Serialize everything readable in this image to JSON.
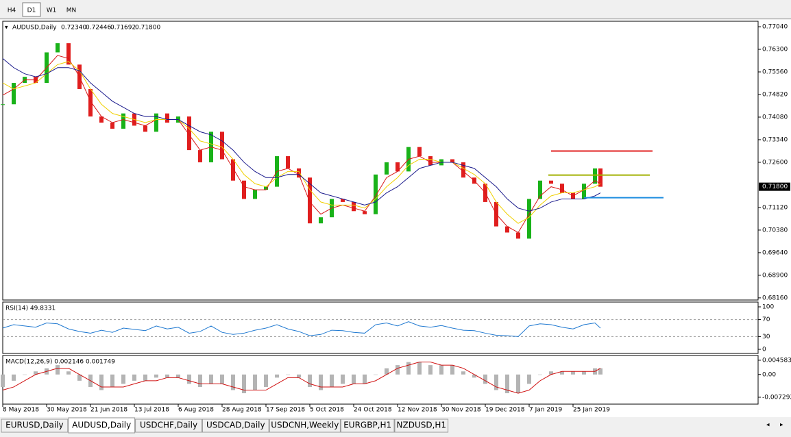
{
  "toolbar": {
    "buttons": [
      "H4",
      "D1",
      "W1",
      "MN"
    ],
    "active": 1
  },
  "chart_data": [
    {
      "type": "candlestick",
      "title": "AUDUSD,Daily",
      "ohlc": [
        "0.72340",
        "0.72446",
        "0.71692",
        "0.71800"
      ],
      "x": [
        0,
        4,
        8,
        12,
        16,
        20,
        24,
        28,
        32,
        36,
        40,
        44,
        48,
        52,
        56,
        60,
        64,
        68,
        72,
        76,
        80,
        84,
        88,
        92,
        96,
        100,
        104,
        108,
        112,
        116,
        120,
        124,
        128,
        132,
        136,
        140,
        144,
        148,
        152,
        156,
        160,
        164,
        168,
        172,
        176,
        180,
        184,
        188,
        192,
        196,
        200,
        204,
        208,
        212,
        216,
        218
      ],
      "values": [
        0.745,
        0.752,
        0.754,
        0.752,
        0.762,
        0.765,
        0.758,
        0.75,
        0.741,
        0.739,
        0.737,
        0.742,
        0.738,
        0.736,
        0.742,
        0.739,
        0.741,
        0.73,
        0.726,
        0.736,
        0.727,
        0.72,
        0.714,
        0.717,
        0.718,
        0.728,
        0.724,
        0.721,
        0.706,
        0.708,
        0.714,
        0.713,
        0.71,
        0.709,
        0.722,
        0.726,
        0.723,
        0.731,
        0.728,
        0.725,
        0.727,
        0.726,
        0.721,
        0.719,
        0.713,
        0.705,
        0.703,
        0.701,
        0.714,
        0.72,
        0.719,
        0.716,
        0.714,
        0.719,
        0.724,
        0.718
      ],
      "colors": {
        "up": "#19b219",
        "down": "#e01e1e"
      },
      "series": [
        {
          "color": "#d81818",
          "values": [
            0.748,
            0.75,
            0.753,
            0.753,
            0.757,
            0.761,
            0.76,
            0.754,
            0.746,
            0.741,
            0.739,
            0.74,
            0.739,
            0.738,
            0.74,
            0.74,
            0.74,
            0.735,
            0.73,
            0.731,
            0.73,
            0.724,
            0.718,
            0.717,
            0.717,
            0.723,
            0.724,
            0.722,
            0.713,
            0.709,
            0.711,
            0.712,
            0.711,
            0.71,
            0.715,
            0.721,
            0.723,
            0.727,
            0.728,
            0.726,
            0.726,
            0.726,
            0.723,
            0.72,
            0.716,
            0.709,
            0.705,
            0.703,
            0.709,
            0.715,
            0.718,
            0.717,
            0.715,
            0.717,
            0.72,
            0.719
          ]
        },
        {
          "color": "#f0d000",
          "values": [
            0.752,
            0.75,
            0.751,
            0.752,
            0.755,
            0.758,
            0.759,
            0.756,
            0.75,
            0.745,
            0.742,
            0.741,
            0.74,
            0.739,
            0.74,
            0.74,
            0.74,
            0.737,
            0.733,
            0.732,
            0.731,
            0.727,
            0.722,
            0.719,
            0.718,
            0.721,
            0.723,
            0.723,
            0.717,
            0.713,
            0.712,
            0.712,
            0.712,
            0.711,
            0.714,
            0.718,
            0.721,
            0.725,
            0.727,
            0.727,
            0.726,
            0.726,
            0.724,
            0.722,
            0.719,
            0.713,
            0.709,
            0.706,
            0.708,
            0.712,
            0.715,
            0.716,
            0.716,
            0.717,
            0.718,
            0.719
          ]
        },
        {
          "color": "#1a1a8c",
          "values": [
            0.76,
            0.757,
            0.755,
            0.754,
            0.755,
            0.757,
            0.757,
            0.756,
            0.752,
            0.749,
            0.746,
            0.744,
            0.742,
            0.741,
            0.741,
            0.74,
            0.74,
            0.738,
            0.736,
            0.735,
            0.733,
            0.73,
            0.726,
            0.723,
            0.721,
            0.721,
            0.722,
            0.722,
            0.719,
            0.716,
            0.715,
            0.714,
            0.713,
            0.712,
            0.713,
            0.716,
            0.718,
            0.721,
            0.724,
            0.725,
            0.726,
            0.726,
            0.725,
            0.724,
            0.721,
            0.718,
            0.714,
            0.711,
            0.71,
            0.711,
            0.713,
            0.714,
            0.714,
            0.714,
            0.715,
            0.716
          ]
        }
      ],
      "levels": [
        {
          "color": "#e02020",
          "value": 0.7297,
          "x": [
            200,
            237
          ]
        },
        {
          "color": "#a0b000",
          "value": 0.7218,
          "x": [
            199,
            236
          ]
        },
        {
          "color": "#1e8ee0",
          "value": 0.7144,
          "x": [
            212,
            241
          ]
        }
      ],
      "current": {
        "value": 0.718,
        "label": "0.71800"
      },
      "xlim": [
        0,
        275.5
      ],
      "ylim": [
        0.6809,
        0.7722
      ],
      "yticks": [
        {
          "value": 0.7704,
          "label": "0.77040"
        },
        {
          "value": 0.763,
          "label": "0.76300"
        },
        {
          "value": 0.7556,
          "label": "0.75560"
        },
        {
          "value": 0.7482,
          "label": "0.74820"
        },
        {
          "value": 0.7408,
          "label": "0.74080"
        },
        {
          "value": 0.7334,
          "label": "0.73340"
        },
        {
          "value": 0.726,
          "label": "0.72600"
        },
        {
          "value": 0.7112,
          "label": "0.71120"
        },
        {
          "value": 0.7038,
          "label": "0.70380"
        },
        {
          "value": 0.6964,
          "label": "0.69640"
        },
        {
          "value": 0.689,
          "label": "0.68900"
        },
        {
          "value": 0.6816,
          "label": "0.68160"
        }
      ],
      "xticks": [
        {
          "value": 0,
          "label": "8 May 2018"
        },
        {
          "value": 16,
          "label": "30 May 2018"
        },
        {
          "value": 32,
          "label": "21 Jun 2018"
        },
        {
          "value": 48,
          "label": "13 Jul 2018"
        },
        {
          "value": 64,
          "label": "6 Aug 2018"
        },
        {
          "value": 80,
          "label": "28 Aug 2018"
        },
        {
          "value": 96,
          "label": "17 Sep 2018"
        },
        {
          "value": 112,
          "label": "5 Oct 2018"
        },
        {
          "value": 128,
          "label": "24 Oct 2018"
        },
        {
          "value": 144,
          "label": "12 Nov 2018"
        },
        {
          "value": 160,
          "label": "30 Nov 2018"
        },
        {
          "value": 176,
          "label": "19 Dec 2018"
        },
        {
          "value": 192,
          "label": "7 Jan 2019"
        },
        {
          "value": 208,
          "label": "25 Jan 2019"
        }
      ]
    },
    {
      "type": "line",
      "title": "RSI(14) 49.8331",
      "color": "#1e78d0",
      "ylim": [
        -9.7,
        111.3
      ],
      "yticks": [
        100,
        70,
        30,
        0
      ],
      "levels": [
        70,
        30
      ],
      "values": [
        50,
        58,
        55,
        52,
        62,
        60,
        48,
        42,
        38,
        45,
        40,
        50,
        47,
        44,
        55,
        48,
        52,
        38,
        42,
        55,
        40,
        35,
        38,
        45,
        50,
        58,
        48,
        42,
        32,
        35,
        45,
        44,
        40,
        38,
        58,
        62,
        55,
        65,
        55,
        52,
        56,
        50,
        45,
        44,
        38,
        33,
        32,
        30,
        55,
        60,
        58,
        52,
        48,
        58,
        62,
        50
      ]
    },
    {
      "type": "macd",
      "title": "MACD(12,26,9) 0.002146 0.001749",
      "ylim": [
        -0.0095,
        0.0061
      ],
      "yticks": [
        0.004583,
        {
          "value": 0,
          "label": "0.00"
        },
        -0.007292
      ],
      "series": [
        {
          "color": "#b4b4b4",
          "values": [
            -0.004,
            -0.002,
            0,
            0.001,
            0.002,
            0.003,
            0.001,
            -0.002,
            -0.004,
            -0.005,
            -0.004,
            -0.003,
            -0.002,
            -0.002,
            -0.001,
            -0.001,
            -0.001,
            -0.003,
            -0.004,
            -0.003,
            -0.003,
            -0.005,
            -0.006,
            -0.005,
            -0.004,
            -0.001,
            0,
            -0.001,
            -0.004,
            -0.005,
            -0.004,
            -0.003,
            -0.003,
            -0.003,
            0,
            0.002,
            0.003,
            0.004,
            0.004,
            0.003,
            0.003,
            0.003,
            0.001,
            -0.001,
            -0.003,
            -0.005,
            -0.006,
            -0.006,
            -0.003,
            0,
            0.001,
            0.001,
            0.001,
            0.001,
            0.002,
            0.002
          ]
        },
        {
          "color": "#d01010",
          "values": [
            -0.005,
            -0.004,
            -0.002,
            0,
            0.001,
            0.002,
            0.002,
            0,
            -0.002,
            -0.004,
            -0.004,
            -0.004,
            -0.003,
            -0.002,
            -0.002,
            -0.001,
            -0.001,
            -0.002,
            -0.003,
            -0.003,
            -0.003,
            -0.004,
            -0.005,
            -0.005,
            -0.005,
            -0.003,
            -0.001,
            -0.001,
            -0.003,
            -0.004,
            -0.004,
            -0.004,
            -0.003,
            -0.003,
            -0.002,
            0,
            0.002,
            0.003,
            0.004,
            0.004,
            0.003,
            0.003,
            0.002,
            0,
            -0.002,
            -0.004,
            -0.005,
            -0.006,
            -0.005,
            -0.002,
            0,
            0.001,
            0.001,
            0.001,
            0.001,
            0.002
          ]
        }
      ]
    }
  ],
  "tabs": {
    "items": [
      "EURUSD,Daily",
      "AUDUSD,Daily",
      "USDCHF,Daily",
      "USDCAD,Daily",
      "USDCNH,Weekly",
      "EURGBP,H1",
      "NZDUSD,H1"
    ],
    "active": 1
  }
}
